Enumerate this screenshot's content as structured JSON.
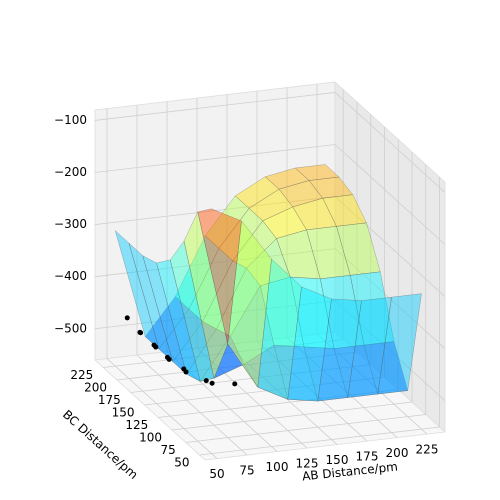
{
  "chart_data": {
    "type": "surface3d",
    "xlabel": "AB Distance/pm",
    "ylabel": "BC Distance/pm",
    "x": [
      50,
      75,
      100,
      125,
      150,
      175,
      200,
      225
    ],
    "y": [
      50,
      75,
      100,
      125,
      150,
      175,
      200,
      225
    ],
    "z": [
      [
        -90,
        -120,
        -200,
        -260,
        -290,
        -300,
        -300,
        -300
      ],
      [
        -120,
        -380,
        -470,
        -500,
        -510,
        -510,
        -510,
        -510
      ],
      [
        -200,
        -470,
        -450,
        -420,
        -430,
        -440,
        -440,
        -440
      ],
      [
        -260,
        -500,
        -420,
        -330,
        -320,
        -330,
        -330,
        -330
      ],
      [
        -290,
        -510,
        -430,
        -320,
        -270,
        -260,
        -260,
        -260
      ],
      [
        -300,
        -510,
        -440,
        -330,
        -260,
        -240,
        -230,
        -230
      ],
      [
        -300,
        -510,
        -440,
        -330,
        -260,
        -230,
        -220,
        -220
      ],
      [
        -300,
        -510,
        -440,
        -330,
        -260,
        -230,
        -220,
        -220
      ]
    ],
    "trajectory": {
      "color": "#000000",
      "x": [
        60,
        66,
        62,
        70,
        64,
        72,
        66,
        75,
        70,
        80,
        78,
        90
      ],
      "y": [
        225,
        215,
        205,
        195,
        185,
        175,
        165,
        155,
        140,
        125,
        110,
        95
      ],
      "z": [
        -470,
        -490,
        -480,
        -500,
        -485,
        -505,
        -490,
        -505,
        -495,
        -500,
        -490,
        -480
      ]
    },
    "xlim": [
      40,
      240
    ],
    "ylim": [
      40,
      240
    ],
    "zlim": [
      -560,
      -80
    ],
    "xticks": [
      50,
      75,
      100,
      125,
      150,
      175,
      200,
      225
    ],
    "yticks": [
      50,
      75,
      100,
      125,
      150,
      175,
      200,
      225
    ],
    "zticks": [
      {
        "value": -100,
        "label": "−100"
      },
      {
        "value": -200,
        "label": "−200"
      },
      {
        "value": -300,
        "label": "−300"
      },
      {
        "value": -400,
        "label": "−400"
      },
      {
        "value": -500,
        "label": "−500"
      }
    ],
    "grid": true
  }
}
